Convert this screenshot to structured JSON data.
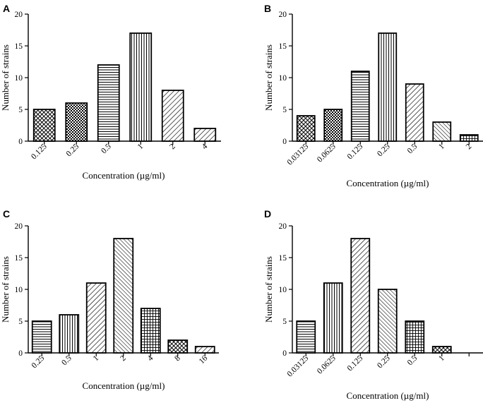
{
  "chart_data": [
    {
      "type": "bar",
      "panel": "A",
      "xlabel": "Concentration (µg/ml)",
      "ylabel": "Number of strains",
      "ylim": [
        0,
        20
      ],
      "yticks": [
        0,
        5,
        10,
        15,
        20
      ],
      "categories": [
        "0.125",
        "0.25",
        "0.5",
        "1",
        "2",
        "4"
      ],
      "values": [
        5,
        6,
        12,
        17,
        8,
        2
      ],
      "patterns": [
        "crosshatch-diag",
        "checker",
        "horizontal",
        "vertical",
        "diag-right",
        "diag-right"
      ]
    },
    {
      "type": "bar",
      "panel": "B",
      "xlabel": "Concentration (µg/ml)",
      "ylabel": "Number of strains",
      "ylim": [
        0,
        20
      ],
      "yticks": [
        0,
        5,
        10,
        15,
        20
      ],
      "categories": [
        "0.03125",
        "0.0625",
        "0.125",
        "0.25",
        "0.5",
        "1",
        "2"
      ],
      "values": [
        4,
        5,
        11,
        17,
        9,
        3,
        1
      ],
      "patterns": [
        "crosshatch-diag",
        "checker",
        "horizontal",
        "vertical",
        "diag-right",
        "diag-left",
        "grid"
      ]
    },
    {
      "type": "bar",
      "panel": "C",
      "xlabel": "Concentration (µg/ml)",
      "ylabel": "Number of strains",
      "ylim": [
        0,
        20
      ],
      "yticks": [
        0,
        5,
        10,
        15,
        20
      ],
      "categories": [
        "0.25",
        "0.5",
        "1",
        "2",
        "4",
        "8",
        "16"
      ],
      "values": [
        5,
        6,
        11,
        18,
        7,
        2,
        1
      ],
      "patterns": [
        "horizontal",
        "vertical",
        "diag-right",
        "diag-left",
        "grid",
        "crosshatch-diag",
        "diag-right"
      ]
    },
    {
      "type": "bar",
      "panel": "D",
      "xlabel": "Concentration (µg/ml)",
      "ylabel": "Number of strains",
      "ylim": [
        0,
        20
      ],
      "yticks": [
        0,
        5,
        10,
        15,
        20
      ],
      "categories": [
        "0.03125",
        "0.0625",
        "0.125",
        "0.25",
        "0.5",
        "1",
        ""
      ],
      "values": [
        5,
        11,
        18,
        10,
        5,
        1,
        0
      ],
      "patterns": [
        "horizontal",
        "vertical",
        "diag-right",
        "diag-left",
        "grid",
        "crosshatch-diag",
        "none"
      ]
    }
  ]
}
